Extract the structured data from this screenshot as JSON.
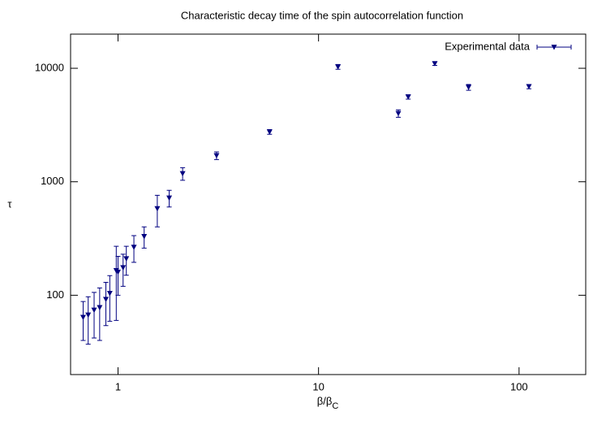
{
  "chart_data": {
    "type": "errorbar",
    "title": "Characteristic decay time of the spin autocorrelation function",
    "x_label": {
      "main": "β/β",
      "sub": "C"
    },
    "y_label": "τ",
    "x": [
      0.67,
      0.71,
      0.76,
      0.81,
      0.87,
      0.91,
      0.98,
      1.0,
      1.06,
      1.1,
      1.2,
      1.35,
      1.57,
      1.8,
      2.1,
      3.1,
      5.7,
      12.5,
      25,
      28,
      38,
      56,
      112
    ],
    "series": [
      {
        "name": "Experimental data",
        "color": "#000080",
        "values": [
          64,
          67,
          74,
          78,
          92,
          104,
          165,
          160,
          175,
          210,
          265,
          330,
          580,
          720,
          1180,
          1700,
          2750,
          10300,
          4000,
          5600,
          11000,
          6800,
          6900
        ],
        "errors": [
          24,
          30,
          32,
          38,
          38,
          45,
          105,
          60,
          55,
          60,
          70,
          70,
          180,
          120,
          150,
          130,
          130,
          500,
          300,
          250,
          400,
          400,
          300
        ]
      }
    ],
    "xlim": [
      0.58,
      215
    ],
    "ylim": [
      20,
      20000
    ],
    "xticks": [
      1,
      10,
      100
    ],
    "yticks": [
      100,
      1000,
      10000
    ],
    "log_x": true,
    "log_y": true,
    "legend": "top-right"
  }
}
